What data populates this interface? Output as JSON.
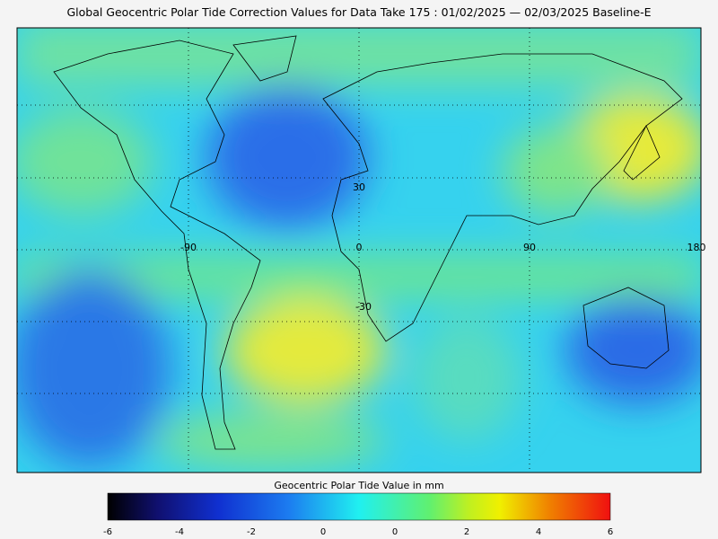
{
  "title": "Global Geocentric Polar Tide Correction Values for Data Take 175 : 01/02/2025 — 02/03/2025 Baseline-E",
  "map": {
    "lon_labels": [
      "-90",
      "0",
      "90",
      "180"
    ],
    "lat_labels": [
      "30",
      "-30"
    ]
  },
  "colorbar": {
    "label": "Geocentric Polar Tide Value in mm",
    "tick_labels": [
      "-6",
      "-4",
      "-2",
      "0",
      "0",
      "2",
      "4",
      "6"
    ]
  }
}
